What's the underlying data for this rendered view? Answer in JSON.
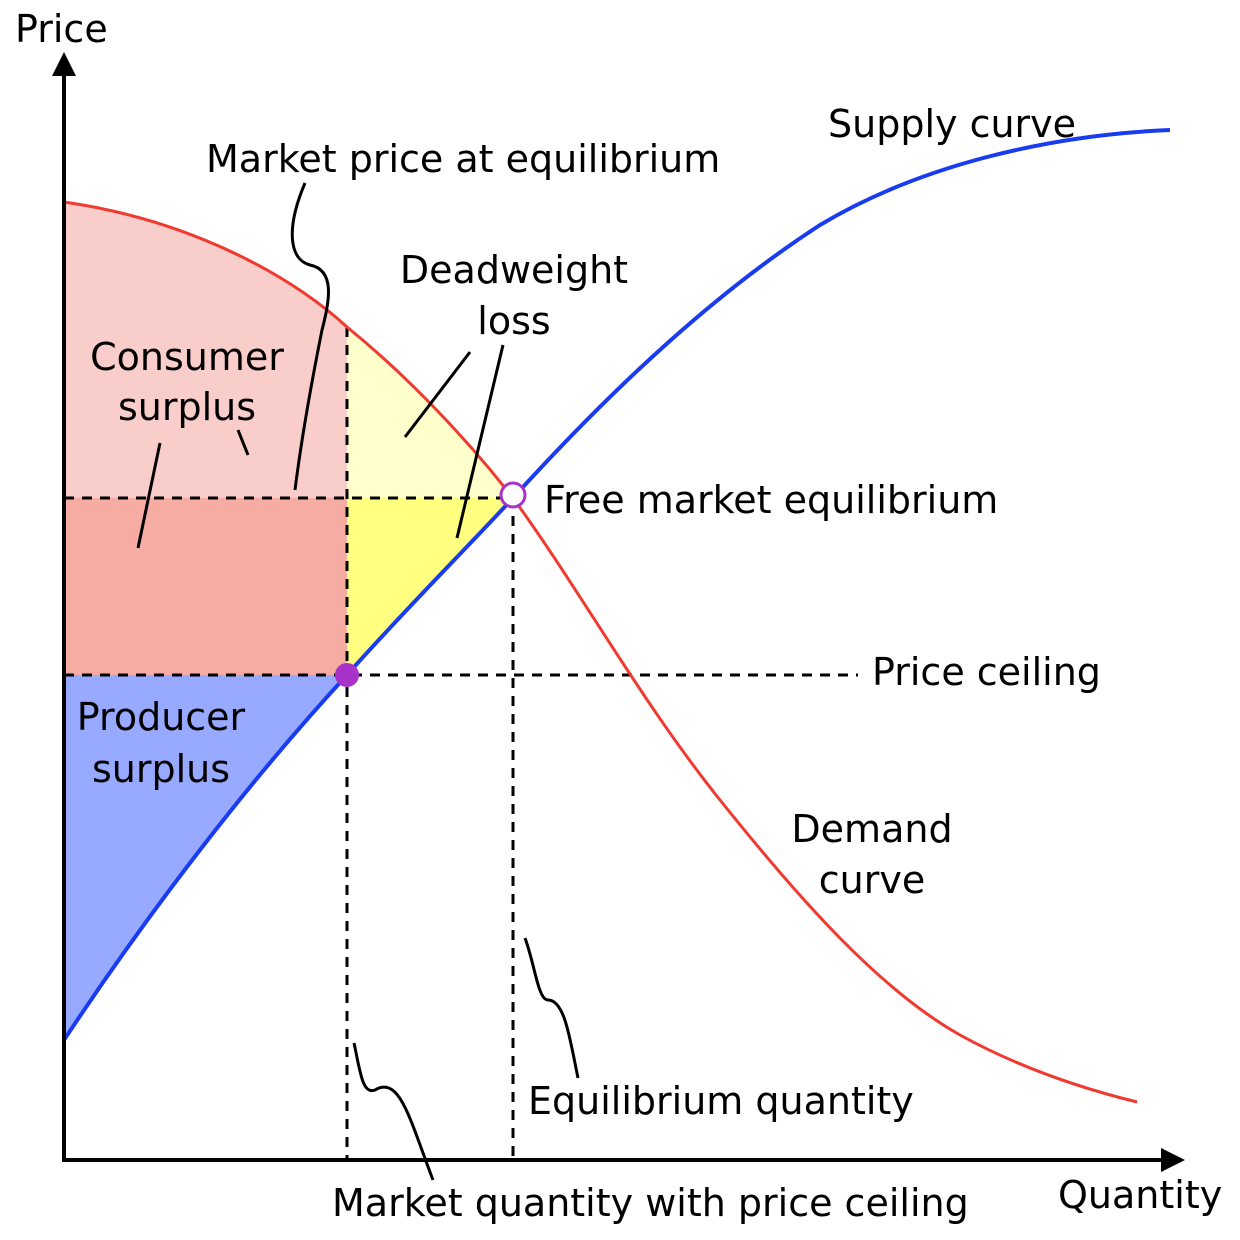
{
  "axes": {
    "y_label": "Price",
    "x_label": "Quantity"
  },
  "labels": {
    "supply_curve": "Supply curve",
    "market_price": "Market price at equilibrium",
    "deadweight_line1": "Deadweight",
    "deadweight_line2": "loss",
    "consumer_line1": "Consumer",
    "consumer_line2": "surplus",
    "free_market": "Free market equilibrium",
    "price_ceiling": "Price ceiling",
    "producer_line1": "Producer",
    "producer_line2": "surplus",
    "demand_line1": "Demand",
    "demand_line2": "curve",
    "equilibrium_quantity": "Equilibrium quantity",
    "market_quantity": "Market quantity with price ceiling"
  },
  "colors": {
    "supply": "#1a3cf0",
    "demand": "#f03a30",
    "consumer_surplus": "#f9cdc9",
    "transfer": "#f6aba3",
    "deadweight_upper": "#ffffcc",
    "deadweight_lower": "#ffff80",
    "producer_surplus": "#97aaff",
    "ceiling_point": "#a833c8",
    "equilibrium_point": "#a833c8"
  }
}
